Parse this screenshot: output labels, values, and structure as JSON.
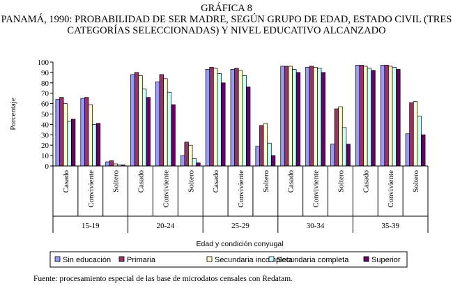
{
  "header": {
    "label": "GRÁFICA 8",
    "line1": "PANAMÁ, 1990: PROBABILIDAD DE SER MADRE, SEGÚN GRUPO DE EDAD, ESTADO CIVIL (TRES",
    "line2": "CATEGORÍAS SELECCIONADAS) Y NIVEL EDUCATIVO ALCANZADO"
  },
  "footer": {
    "source": "Fuente: procesamiento especial de las base de microdatos censales con Redatam."
  },
  "chart_data": {
    "type": "bar",
    "ylabel": "Porcentaje",
    "xlabel": "Edad y condición conyugal",
    "ylim": [
      0,
      100
    ],
    "yticks": [
      0,
      10,
      20,
      30,
      40,
      50,
      60,
      70,
      80,
      90,
      100
    ],
    "grid": false,
    "age_groups": [
      "15-19",
      "20-24",
      "25-29",
      "30-34",
      "35-39"
    ],
    "marital_status": [
      "Casado",
      "Conviviente",
      "Soltero"
    ],
    "categories": [
      "15-19 Casado",
      "15-19 Conviviente",
      "15-19 Soltero",
      "20-24 Casado",
      "20-24 Conviviente",
      "20-24 Soltero",
      "25-29 Casado",
      "25-29 Conviviente",
      "25-29 Soltero",
      "30-34 Casado",
      "30-34 Conviviente",
      "30-34 Soltero",
      "35-39 Casado",
      "35-39 Conviviente",
      "35-39 Soltero"
    ],
    "series": [
      {
        "name": "Sin educación",
        "color": "#9999ff",
        "values": [
          64,
          65,
          4,
          88,
          81,
          10,
          93,
          93,
          19,
          96,
          95,
          21,
          97,
          97,
          31
        ]
      },
      {
        "name": "Primaria",
        "color": "#993366",
        "values": [
          66,
          66,
          5,
          90,
          88,
          23,
          95,
          94,
          39,
          96,
          96,
          55,
          97,
          97,
          61
        ]
      },
      {
        "name": "Secundaria incompleta",
        "color": "#ffffcc",
        "values": [
          60,
          59,
          2,
          87,
          84,
          20,
          94,
          92,
          41,
          96,
          95,
          57,
          96,
          96,
          62
        ]
      },
      {
        "name": "Secundaria completa",
        "color": "#ccffff",
        "values": [
          43,
          40,
          1,
          74,
          71,
          7,
          89,
          87,
          22,
          93,
          94,
          37,
          94,
          95,
          48
        ]
      },
      {
        "name": "Superior",
        "color": "#660066",
        "values": [
          45,
          41,
          1,
          66,
          59,
          3,
          80,
          76,
          10,
          90,
          90,
          21,
          92,
          93,
          30
        ]
      }
    ],
    "legend_position": "bottom"
  }
}
